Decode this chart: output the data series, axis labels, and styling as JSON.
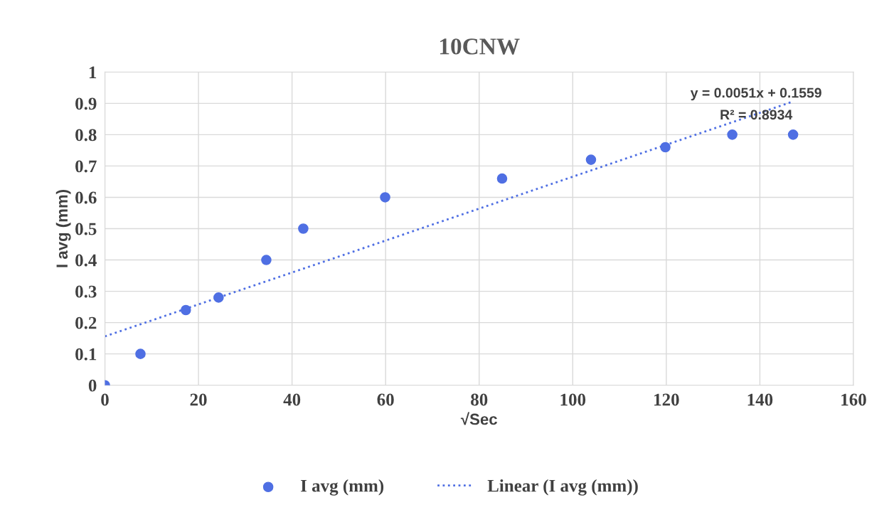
{
  "chart_data": {
    "type": "scatter",
    "title": "10CNW",
    "xlabel": "√Sec",
    "ylabel": "I avg (mm)",
    "series": [
      {
        "name": "I avg (mm)",
        "color": "#4f6fe3",
        "x": [
          0,
          7.6,
          17.3,
          24.3,
          34.5,
          42.4,
          59.9,
          84.9,
          103.9,
          119.8,
          134.1,
          147.1
        ],
        "values": [
          0,
          0.1,
          0.24,
          0.28,
          0.4,
          0.5,
          0.6,
          0.66,
          0.72,
          0.76,
          0.8,
          0.8
        ]
      },
      {
        "name": "Linear (I avg (mm))",
        "type": "line",
        "line_style": "dotted",
        "marker": "none",
        "color": "#4f6fe3",
        "x": [
          0,
          147.1
        ],
        "values": [
          0.156,
          0.906
        ]
      }
    ],
    "annotations": [
      "y = 0.0051x + 0.1559",
      "R² = 0.8934"
    ],
    "xlim": [
      0,
      160
    ],
    "xticks": [
      0,
      20,
      40,
      60,
      80,
      100,
      120,
      140,
      160
    ],
    "ylim": [
      0,
      1
    ],
    "yticks": [
      0,
      0.1,
      0.2,
      0.3,
      0.4,
      0.5,
      0.6,
      0.7,
      0.8,
      0.9,
      1
    ],
    "grid": true,
    "legend": "bottom"
  }
}
